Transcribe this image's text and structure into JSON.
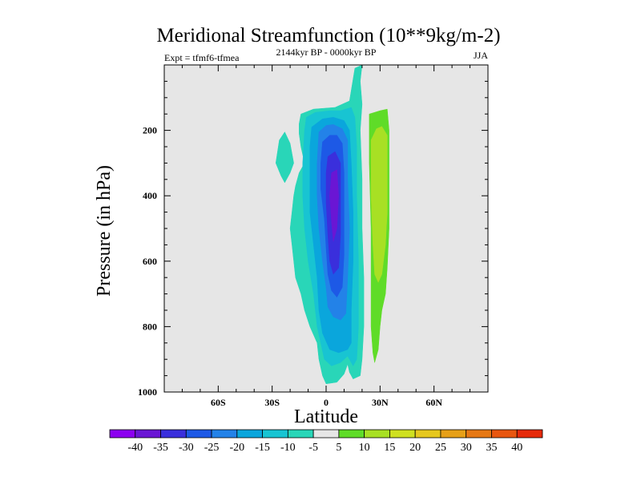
{
  "chart_data": {
    "type": "contour",
    "title": "Meridional Streamfunction (10**9kg/m-2)",
    "left_label": "Expt = tfmf6-tfmea",
    "center_label": "2144kyr BP - 0000kyr BP",
    "right_label": "JJA",
    "xlabel": "Latitude",
    "ylabel": "Pressure (in hPa)",
    "xlim": [
      -90,
      90
    ],
    "ylim": [
      1000,
      0
    ],
    "x_ticks": [
      {
        "value": -60,
        "label": "60S"
      },
      {
        "value": -30,
        "label": "30S"
      },
      {
        "value": 0,
        "label": "0"
      },
      {
        "value": 30,
        "label": "30N"
      },
      {
        "value": 60,
        "label": "60N"
      }
    ],
    "y_ticks": [
      {
        "value": 200,
        "label": "200"
      },
      {
        "value": 400,
        "label": "400"
      },
      {
        "value": 600,
        "label": "600"
      },
      {
        "value": 800,
        "label": "800"
      },
      {
        "value": 1000,
        "label": "1000"
      }
    ],
    "background_color": "#e6e6e6",
    "contour_fills": [
      {
        "level": -5,
        "color": "#29d6b8",
        "points": [
          [
            -25,
            340
          ],
          [
            -28,
            300
          ],
          [
            -26,
            230
          ],
          [
            -23,
            205
          ],
          [
            -20,
            240
          ],
          [
            -18,
            300
          ],
          [
            -20,
            330
          ],
          [
            -23,
            360
          ]
        ]
      },
      {
        "level": -5,
        "color": "#29d6b8",
        "points": [
          [
            -15,
            180
          ],
          [
            -14,
            150
          ],
          [
            -7,
            135
          ],
          [
            5,
            130
          ],
          [
            13,
            110
          ],
          [
            16,
            10
          ],
          [
            20,
            0
          ],
          [
            19,
            50
          ],
          [
            20,
            120
          ],
          [
            19,
            200
          ],
          [
            20,
            350
          ],
          [
            20,
            500
          ],
          [
            21,
            650
          ],
          [
            21,
            800
          ],
          [
            20,
            900
          ],
          [
            19,
            950
          ],
          [
            15,
            960
          ],
          [
            13,
            940
          ],
          [
            12,
            915
          ],
          [
            10,
            945
          ],
          [
            6,
            970
          ],
          [
            0,
            975
          ],
          [
            -2,
            950
          ],
          [
            -4,
            900
          ],
          [
            -5,
            850
          ],
          [
            -9,
            800
          ],
          [
            -12,
            750
          ],
          [
            -14,
            700
          ],
          [
            -17,
            650
          ],
          [
            -18,
            600
          ],
          [
            -19,
            550
          ],
          [
            -20,
            500
          ],
          [
            -19,
            450
          ],
          [
            -18,
            400
          ],
          [
            -17,
            370
          ],
          [
            -15,
            330
          ],
          [
            -12,
            300
          ],
          [
            -14,
            250
          ],
          [
            -15,
            210
          ]
        ]
      },
      {
        "level": -10,
        "color": "#18c4d2",
        "points": [
          [
            -11,
            160
          ],
          [
            -6,
            145
          ],
          [
            2,
            140
          ],
          [
            8,
            140
          ],
          [
            14,
            130
          ],
          [
            16,
            160
          ],
          [
            17,
            250
          ],
          [
            17,
            400
          ],
          [
            18,
            600
          ],
          [
            18,
            800
          ],
          [
            17,
            900
          ],
          [
            15,
            920
          ],
          [
            12,
            890
          ],
          [
            8,
            910
          ],
          [
            3,
            920
          ],
          [
            -1,
            900
          ],
          [
            -3,
            850
          ],
          [
            -5,
            800
          ],
          [
            -7,
            700
          ],
          [
            -10,
            600
          ],
          [
            -12,
            500
          ],
          [
            -13,
            400
          ],
          [
            -13,
            300
          ],
          [
            -12,
            200
          ]
        ]
      },
      {
        "level": -15,
        "color": "#0aa6dc",
        "points": [
          [
            -8,
            190
          ],
          [
            -2,
            165
          ],
          [
            4,
            160
          ],
          [
            10,
            170
          ],
          [
            13,
            200
          ],
          [
            14,
            300
          ],
          [
            15,
            450
          ],
          [
            15,
            600
          ],
          [
            14,
            750
          ],
          [
            14,
            850
          ],
          [
            12,
            870
          ],
          [
            7,
            880
          ],
          [
            2,
            870
          ],
          [
            -2,
            820
          ],
          [
            -4,
            750
          ],
          [
            -5,
            650
          ],
          [
            -7,
            550
          ],
          [
            -9,
            450
          ],
          [
            -9,
            350
          ],
          [
            -9,
            250
          ]
        ]
      },
      {
        "level": -20,
        "color": "#2382e8",
        "points": [
          [
            -4,
            205
          ],
          [
            0,
            185
          ],
          [
            4,
            182
          ],
          [
            9,
            195
          ],
          [
            12,
            230
          ],
          [
            12,
            350
          ],
          [
            13,
            500
          ],
          [
            12,
            650
          ],
          [
            11,
            760
          ],
          [
            8,
            780
          ],
          [
            4,
            770
          ],
          [
            1,
            740
          ],
          [
            0,
            680
          ],
          [
            -2,
            600
          ],
          [
            -4,
            500
          ],
          [
            -5,
            400
          ],
          [
            -5,
            300
          ]
        ]
      },
      {
        "level": -25,
        "color": "#1d59e6",
        "points": [
          [
            -2,
            235
          ],
          [
            2,
            215
          ],
          [
            6,
            215
          ],
          [
            9,
            240
          ],
          [
            10,
            330
          ],
          [
            10,
            450
          ],
          [
            10,
            580
          ],
          [
            9,
            680
          ],
          [
            6,
            710
          ],
          [
            3,
            690
          ],
          [
            1,
            640
          ],
          [
            0,
            560
          ],
          [
            -1,
            470
          ],
          [
            -3,
            380
          ],
          [
            -3,
            300
          ]
        ]
      },
      {
        "level": -30,
        "color": "#3a2fdc",
        "points": [
          [
            1,
            280
          ],
          [
            5,
            265
          ],
          [
            8,
            300
          ],
          [
            8,
            400
          ],
          [
            8,
            520
          ],
          [
            7,
            620
          ],
          [
            4,
            640
          ],
          [
            2,
            600
          ],
          [
            1,
            520
          ],
          [
            0,
            420
          ],
          [
            0,
            330
          ]
        ]
      },
      {
        "level": -35,
        "color": "#6a16d4",
        "points": [
          [
            3,
            330
          ],
          [
            6,
            320
          ],
          [
            7,
            400
          ],
          [
            6,
            500
          ],
          [
            4,
            540
          ],
          [
            3,
            480
          ],
          [
            2,
            400
          ]
        ]
      },
      {
        "level": 5,
        "color": "#5fdc28",
        "points": [
          [
            24,
            150
          ],
          [
            30,
            140
          ],
          [
            34,
            135
          ],
          [
            35,
            200
          ],
          [
            35,
            350
          ],
          [
            35,
            500
          ],
          [
            34,
            620
          ],
          [
            33,
            700
          ],
          [
            31,
            750
          ],
          [
            30,
            800
          ],
          [
            29,
            870
          ],
          [
            27,
            910
          ],
          [
            26,
            880
          ],
          [
            25,
            800
          ],
          [
            25,
            700
          ],
          [
            25,
            500
          ],
          [
            24,
            300
          ]
        ]
      },
      {
        "level": 10,
        "color": "#a8e024",
        "points": [
          [
            25,
            230
          ],
          [
            28,
            195
          ],
          [
            31,
            188
          ],
          [
            34,
            215
          ],
          [
            34,
            300
          ],
          [
            34,
            450
          ],
          [
            33,
            550
          ],
          [
            31,
            640
          ],
          [
            29,
            665
          ],
          [
            27,
            640
          ],
          [
            26,
            550
          ],
          [
            25,
            400
          ]
        ]
      }
    ],
    "colorbar": {
      "labels": [
        "-40",
        "-35",
        "-30",
        "-25",
        "-20",
        "-15",
        "-10",
        "-5",
        "5",
        "10",
        "15",
        "20",
        "25",
        "30",
        "35",
        "40"
      ],
      "colors": [
        "#8c00f0",
        "#6a16d4",
        "#3a2fdc",
        "#1d59e6",
        "#2382e8",
        "#0aa6dc",
        "#18c4d2",
        "#29d6b8",
        "#e6e6e6",
        "#5fdc28",
        "#a8e024",
        "#cfe020",
        "#e6c81e",
        "#e6a018",
        "#e67814",
        "#e8560f",
        "#e62a0a"
      ]
    }
  }
}
